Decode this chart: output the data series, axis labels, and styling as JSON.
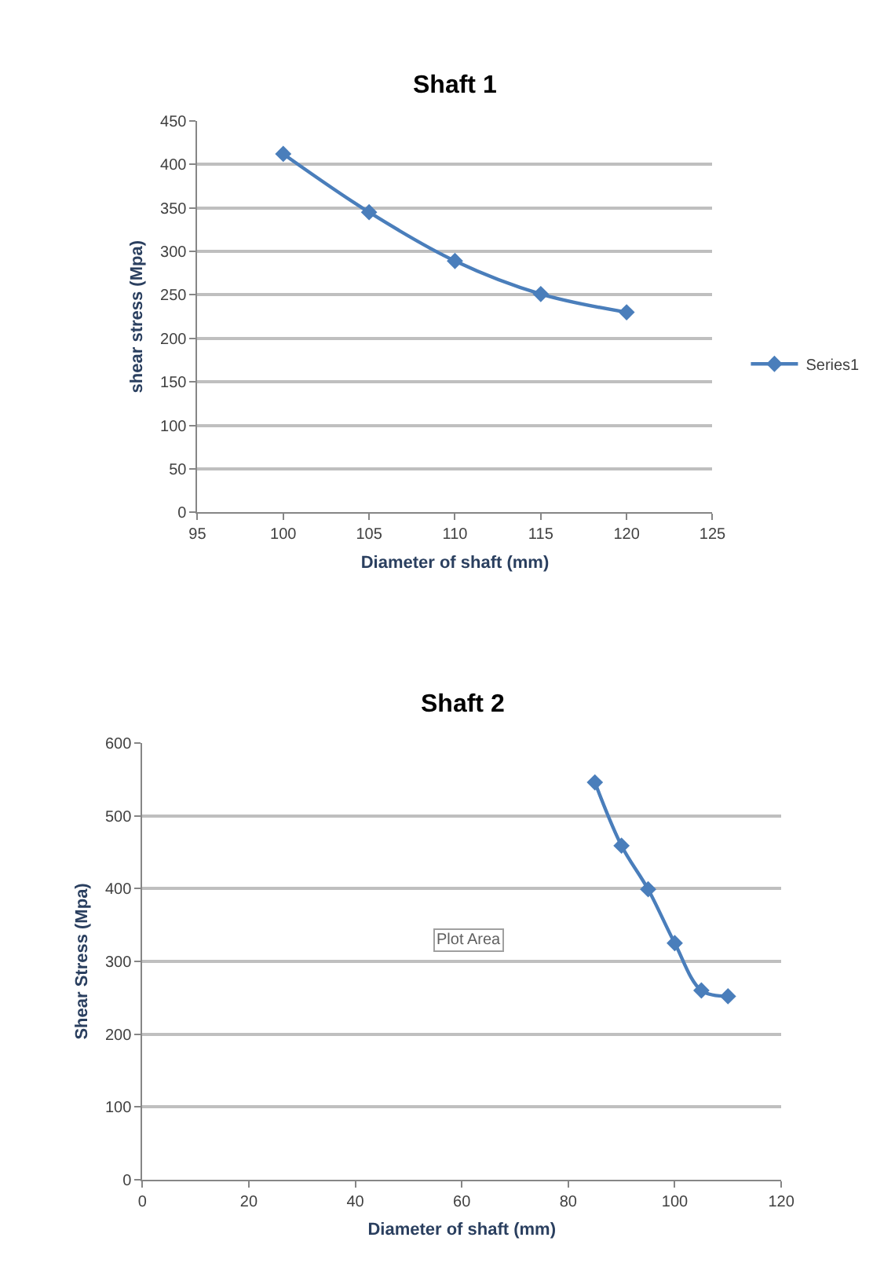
{
  "chart_data": [
    {
      "type": "line",
      "title": "Shaft 1",
      "xlabel": "Diameter of shaft (mm)",
      "ylabel": "shear stress (Mpa)",
      "x": [
        100,
        105,
        110,
        115,
        120
      ],
      "series": [
        {
          "name": "Series1",
          "color": "#4a7ebb",
          "values": [
            412,
            345,
            289,
            251,
            230
          ]
        }
      ],
      "xlim": [
        95,
        125
      ],
      "xticks": [
        95,
        100,
        105,
        110,
        115,
        120,
        125
      ],
      "ylim": [
        0,
        450
      ],
      "yticks": [
        0,
        50,
        100,
        150,
        200,
        250,
        300,
        350,
        400,
        450
      ],
      "grid": "y",
      "legend": "right",
      "marker": "diamond",
      "line_style": "solid"
    },
    {
      "type": "line",
      "title": "Shaft 2",
      "xlabel": "Diameter of shaft (mm)",
      "ylabel": "Shear Stress (Mpa)",
      "x": [
        85,
        90,
        95,
        100,
        105,
        110
      ],
      "series": [
        {
          "color": "#4a7ebb",
          "values": [
            546,
            459,
            399,
            325,
            260,
            252
          ]
        }
      ],
      "xlim": [
        0,
        120
      ],
      "xticks": [
        0,
        20,
        40,
        60,
        80,
        100,
        120
      ],
      "ylim": [
        0,
        600
      ],
      "yticks": [
        0,
        100,
        200,
        300,
        400,
        500,
        600
      ],
      "grid": "y",
      "marker": "diamond",
      "line_style": "solid",
      "annotations": [
        "Plot Area"
      ]
    }
  ]
}
